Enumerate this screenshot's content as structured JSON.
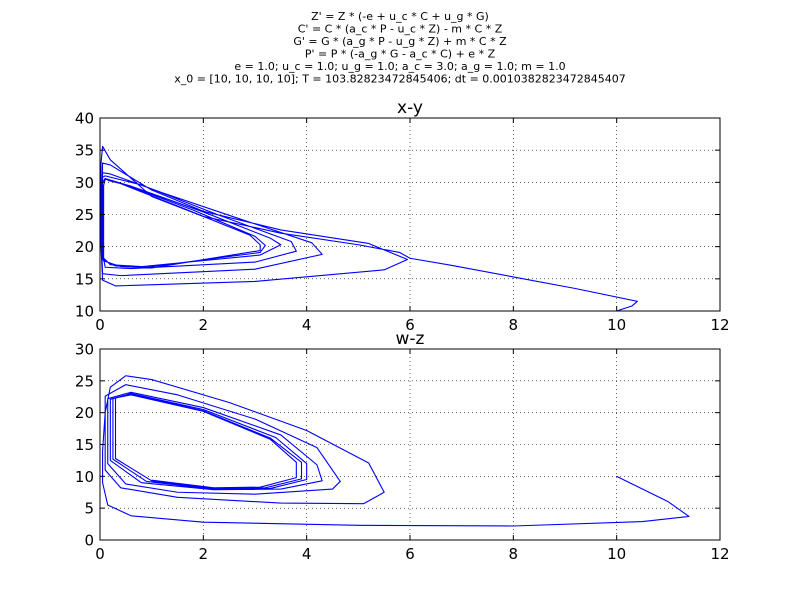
{
  "figure": {
    "suptitle_lines": [
      "Z' = Z * (-e + u_c * C + u_g * G)",
      "C' = C * (a_c * P - u_c * Z) - m * C * Z",
      "G' = G * (a_g * P - u_g * Z) + m * C * Z",
      "P' = P * (-a_g * G - a_c * C) + e * Z",
      "e = 1.0; u_c = 1.0; u_g = 1.0; a_c = 3.0; a_g = 1.0; m = 1.0",
      "x_0 = [10, 10, 10, 10]; T = 103.82823472845406; dt = 0.0010382823472845407"
    ]
  },
  "chart_data": [
    {
      "type": "line",
      "title": "x-y",
      "xlabel": "",
      "ylabel": "",
      "xlim": [
        0,
        12
      ],
      "ylim": [
        10,
        40
      ],
      "xticks": [
        0,
        2,
        4,
        6,
        8,
        10,
        12
      ],
      "yticks": [
        10,
        15,
        20,
        25,
        30,
        35,
        40
      ],
      "grid": true,
      "series": [
        {
          "color": "#0000ff",
          "points": [
            [
              10,
              10
            ],
            [
              10.3,
              10.8
            ],
            [
              10.4,
              11.5
            ],
            [
              9.2,
              13.5
            ],
            [
              8,
              15.3
            ],
            [
              6.8,
              17.1
            ],
            [
              6.0,
              18.2
            ],
            [
              5.8,
              19.1
            ],
            [
              5.0,
              20.3
            ],
            [
              3.5,
              22.1
            ],
            [
              2.0,
              24.7
            ],
            [
              1.0,
              27.8
            ],
            [
              0.2,
              33.5
            ],
            [
              0.05,
              35.6
            ],
            [
              0.02,
              33
            ],
            [
              0.02,
              20
            ],
            [
              0.05,
              14.8
            ],
            [
              0.3,
              13.9
            ],
            [
              3,
              14.6
            ],
            [
              5.5,
              16.4
            ],
            [
              5.95,
              18
            ],
            [
              5.2,
              20.5
            ],
            [
              3.5,
              22.6
            ],
            [
              2,
              25.5
            ],
            [
              1,
              28.8
            ],
            [
              0.2,
              32.7
            ],
            [
              0.05,
              33
            ],
            [
              0.02,
              22
            ],
            [
              0.05,
              15.8
            ],
            [
              0.4,
              15.5
            ],
            [
              3,
              16.5
            ],
            [
              4.3,
              18.8
            ],
            [
              4.1,
              20.6
            ],
            [
              2.6,
              24.6
            ],
            [
              1.2,
              28.4
            ],
            [
              0.2,
              31.3
            ],
            [
              0.05,
              31.5
            ],
            [
              0.03,
              20
            ],
            [
              0.1,
              16.8
            ],
            [
              0.6,
              16.6
            ],
            [
              3,
              17.6
            ],
            [
              3.8,
              19.3
            ],
            [
              3.7,
              20.8
            ],
            [
              2.3,
              24.9
            ],
            [
              0.8,
              29.6
            ],
            [
              0.1,
              31
            ],
            [
              0.05,
              30.8
            ],
            [
              0.05,
              18.4
            ],
            [
              0.2,
              17.2
            ],
            [
              0.8,
              16.9
            ],
            [
              3.1,
              18.7
            ],
            [
              3.5,
              20.3
            ],
            [
              3.3,
              21.3
            ],
            [
              2.0,
              25.4
            ],
            [
              0.6,
              29.4
            ],
            [
              0.1,
              30.6
            ],
            [
              0.05,
              30
            ],
            [
              0.05,
              18
            ],
            [
              0.3,
              17
            ],
            [
              0.9,
              16.8
            ],
            [
              3.1,
              19.1
            ],
            [
              3.2,
              20.2
            ],
            [
              3.0,
              21.6
            ],
            [
              1.8,
              25.7
            ],
            [
              0.5,
              29.6
            ],
            [
              0.1,
              30.5
            ],
            [
              0.07,
              29.5
            ],
            [
              0.07,
              17.8
            ],
            [
              0.4,
              16.9
            ],
            [
              1,
              16.7
            ],
            [
              3.1,
              19.4
            ],
            [
              3.1,
              20.3
            ],
            [
              2.9,
              21.8
            ],
            [
              1.6,
              26
            ],
            [
              0.4,
              29.8
            ],
            [
              0.15,
              30.3
            ]
          ]
        }
      ]
    },
    {
      "type": "line",
      "title": "w-z",
      "xlabel": "",
      "ylabel": "",
      "xlim": [
        0,
        12
      ],
      "ylim": [
        0,
        30
      ],
      "xticks": [
        0,
        2,
        4,
        6,
        8,
        10,
        12
      ],
      "yticks": [
        0,
        5,
        10,
        15,
        20,
        25,
        30
      ],
      "grid": true,
      "series": [
        {
          "color": "#0000ff",
          "points": [
            [
              10,
              10
            ],
            [
              11.0,
              6.0
            ],
            [
              11.4,
              3.7
            ],
            [
              10.5,
              2.9
            ],
            [
              8,
              2.2
            ],
            [
              5,
              2.3
            ],
            [
              2,
              2.8
            ],
            [
              0.6,
              3.8
            ],
            [
              0.15,
              5.5
            ],
            [
              0.05,
              9
            ],
            [
              0.05,
              14
            ],
            [
              0.1,
              20
            ],
            [
              0.2,
              24
            ],
            [
              0.5,
              25.8
            ],
            [
              1.0,
              25.2
            ],
            [
              2.5,
              21.6
            ],
            [
              4.0,
              17.2
            ],
            [
              5.2,
              12.1
            ],
            [
              5.5,
              7.5
            ],
            [
              5.1,
              5.7
            ],
            [
              3.5,
              5.8
            ],
            [
              1.5,
              6.7
            ],
            [
              0.4,
              8.2
            ],
            [
              0.1,
              11
            ],
            [
              0.1,
              22.6
            ],
            [
              0.5,
              24.4
            ],
            [
              1.5,
              22.8
            ],
            [
              3,
              19
            ],
            [
              4.2,
              14.5
            ],
            [
              4.65,
              9.2
            ],
            [
              4.5,
              8.0
            ],
            [
              3.0,
              7.2
            ],
            [
              1.5,
              7.5
            ],
            [
              0.5,
              8.8
            ],
            [
              0.15,
              12
            ],
            [
              0.15,
              22.2
            ],
            [
              0.6,
              23.2
            ],
            [
              2,
              20.8
            ],
            [
              3.5,
              16.5
            ],
            [
              4.2,
              11.8
            ],
            [
              4.3,
              9.3
            ],
            [
              3.5,
              8.0
            ],
            [
              2.2,
              7.9
            ],
            [
              0.8,
              9.0
            ],
            [
              0.2,
              12.5
            ],
            [
              0.2,
              22.1
            ],
            [
              0.6,
              23.0
            ],
            [
              2,
              20.5
            ],
            [
              3.4,
              16.1
            ],
            [
              4.0,
              12
            ],
            [
              4.0,
              9.5
            ],
            [
              3.3,
              8.1
            ],
            [
              2.2,
              8.0
            ],
            [
              0.9,
              9.2
            ],
            [
              0.25,
              12.7
            ],
            [
              0.25,
              22.2
            ],
            [
              0.6,
              22.9
            ],
            [
              2,
              20.3
            ],
            [
              3.3,
              16.0
            ],
            [
              3.9,
              12.2
            ],
            [
              3.9,
              9.6
            ],
            [
              3.2,
              8.2
            ],
            [
              2.2,
              8.1
            ],
            [
              1.0,
              9.3
            ],
            [
              0.3,
              12.8
            ],
            [
              0.3,
              22.3
            ],
            [
              0.6,
              22.8
            ],
            [
              2,
              20.2
            ],
            [
              3.3,
              15.8
            ],
            [
              3.8,
              12.2
            ],
            [
              3.8,
              9.8
            ],
            [
              3.1,
              8.3
            ],
            [
              2.2,
              8.2
            ],
            [
              1.0,
              9.4
            ]
          ]
        }
      ]
    }
  ]
}
